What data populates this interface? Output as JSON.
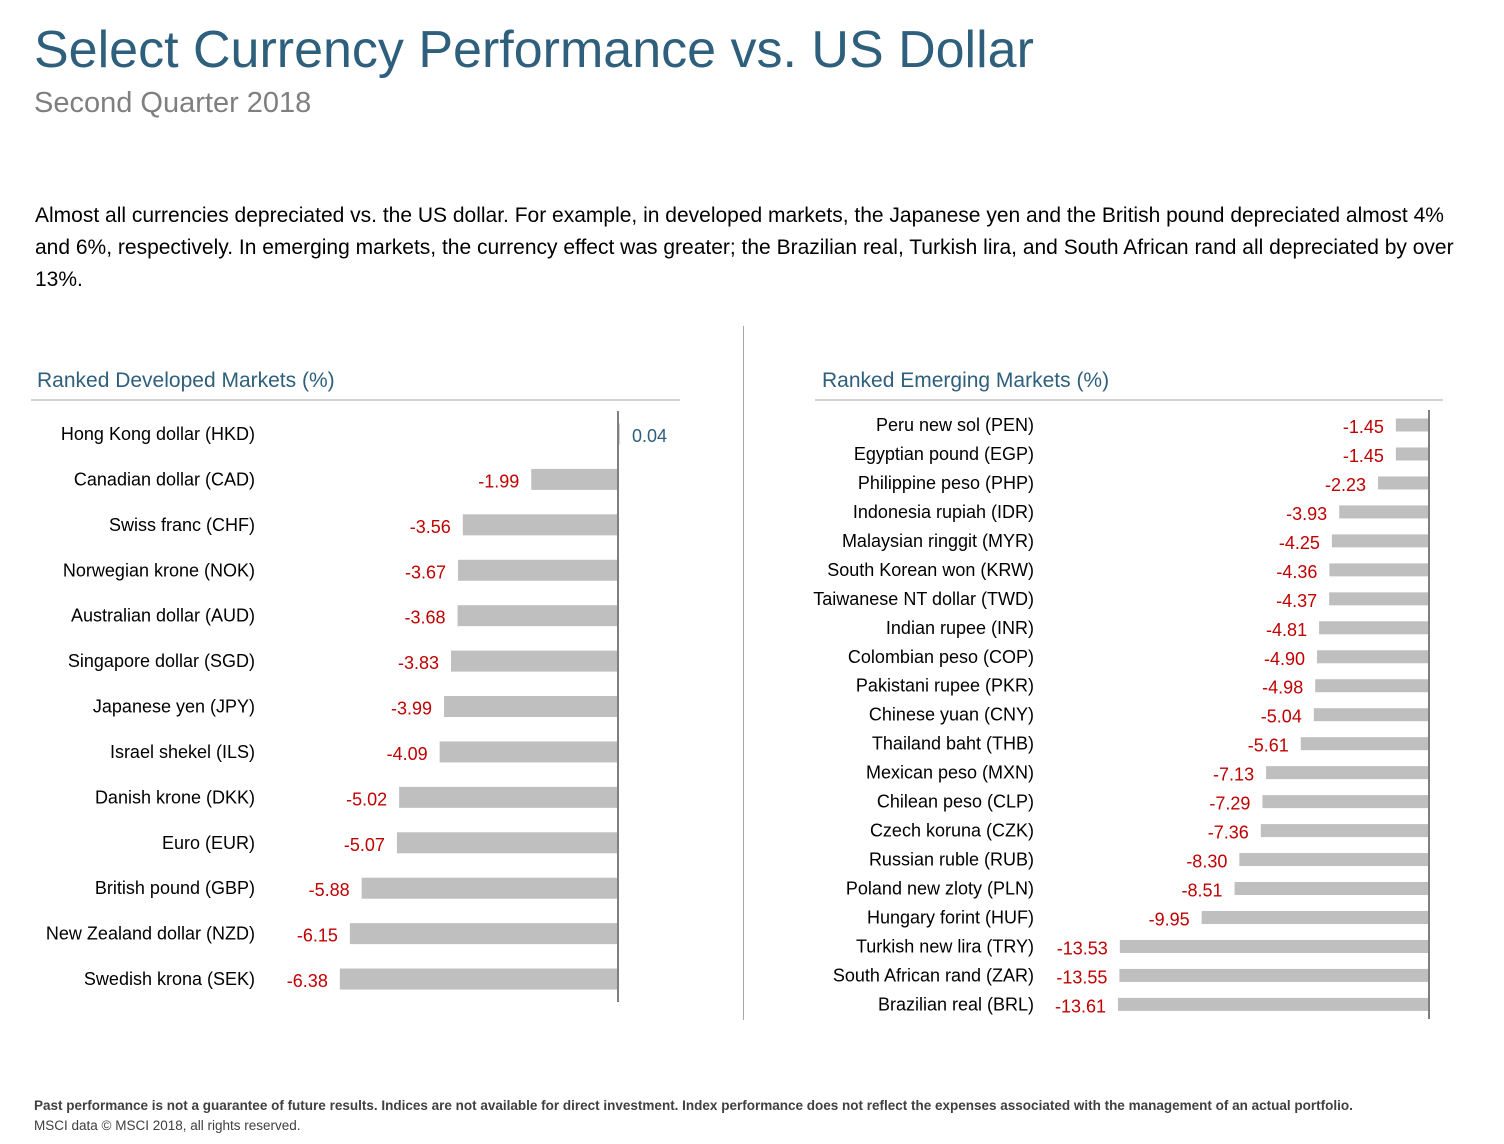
{
  "header": {
    "title": "Select Currency Performance vs. US Dollar",
    "subtitle": "Second Quarter 2018"
  },
  "intro": "Almost all currencies depreciated vs. the US dollar. For example, in developed markets, the Japanese yen and the British pound depreciated almost 4% and 6%, respectively. In emerging markets, the currency effect was greater; the Brazilian real, Turkish lira, and South African rand all depreciated by over 13%.",
  "footer": {
    "disclaimer": "Past performance is not a guarantee of future results. Indices are not available for direct investment. Index performance does not reflect the expenses associated with the management of an actual portfolio.",
    "source": "MSCI data © MSCI 2018, all rights reserved."
  },
  "colors": {
    "bar": "#bfbfbf",
    "negative": "#c00000",
    "positive": "#2e5f7c",
    "axis": "#7f7f7f"
  },
  "chart_data": [
    {
      "type": "bar",
      "orientation": "horizontal",
      "title": "Ranked Developed Markets (%)",
      "categories": [
        "Hong Kong dollar (HKD)",
        "Canadian dollar (CAD)",
        "Swiss franc (CHF)",
        "Norwegian krone (NOK)",
        "Australian dollar (AUD)",
        "Singapore dollar (SGD)",
        "Japanese yen (JPY)",
        "Israel shekel (ILS)",
        "Danish krone (DKK)",
        "Euro (EUR)",
        "British pound (GBP)",
        "New Zealand dollar (NZD)",
        "Swedish krona (SEK)"
      ],
      "values": [
        0.04,
        -1.99,
        -3.56,
        -3.67,
        -3.68,
        -3.83,
        -3.99,
        -4.09,
        -5.02,
        -5.07,
        -5.88,
        -6.15,
        -6.38
      ],
      "labels": [
        "0.04",
        "-1.99",
        "-3.56",
        "-3.67",
        "-3.68",
        "-3.83",
        "-3.99",
        "-4.09",
        "-5.02",
        "-5.07",
        "-5.88",
        "-6.15",
        "-6.38"
      ],
      "grid": false
    },
    {
      "type": "bar",
      "orientation": "horizontal",
      "title": "Ranked Emerging Markets (%)",
      "categories": [
        "Peru new sol (PEN)",
        "Egyptian pound (EGP)",
        "Philippine peso (PHP)",
        "Indonesia rupiah (IDR)",
        "Malaysian ringgit (MYR)",
        "South Korean won (KRW)",
        "Taiwanese NT dollar (TWD)",
        "Indian rupee (INR)",
        "Colombian peso (COP)",
        "Pakistani rupee (PKR)",
        "Chinese yuan (CNY)",
        "Thailand baht (THB)",
        "Mexican peso (MXN)",
        "Chilean peso (CLP)",
        "Czech koruna (CZK)",
        "Russian ruble (RUB)",
        "Poland new zloty (PLN)",
        "Hungary forint (HUF)",
        "Turkish new lira (TRY)",
        "South African rand (ZAR)",
        "Brazilian real (BRL)"
      ],
      "values": [
        -1.45,
        -1.45,
        -2.23,
        -3.93,
        -4.25,
        -4.36,
        -4.37,
        -4.81,
        -4.9,
        -4.98,
        -5.04,
        -5.61,
        -7.13,
        -7.29,
        -7.36,
        -8.3,
        -8.51,
        -9.95,
        -13.53,
        -13.55,
        -13.61
      ],
      "labels": [
        "-1.45",
        "-1.45",
        "-2.23",
        "-3.93",
        "-4.25",
        "-4.36",
        "-4.37",
        "-4.81",
        "-4.90",
        "-4.98",
        "-5.04",
        "-5.61",
        "-7.13",
        "-7.29",
        "-7.36",
        "-8.30",
        "-8.51",
        "-9.95",
        "-13.53",
        "-13.55",
        "-13.61"
      ],
      "grid": false
    }
  ]
}
